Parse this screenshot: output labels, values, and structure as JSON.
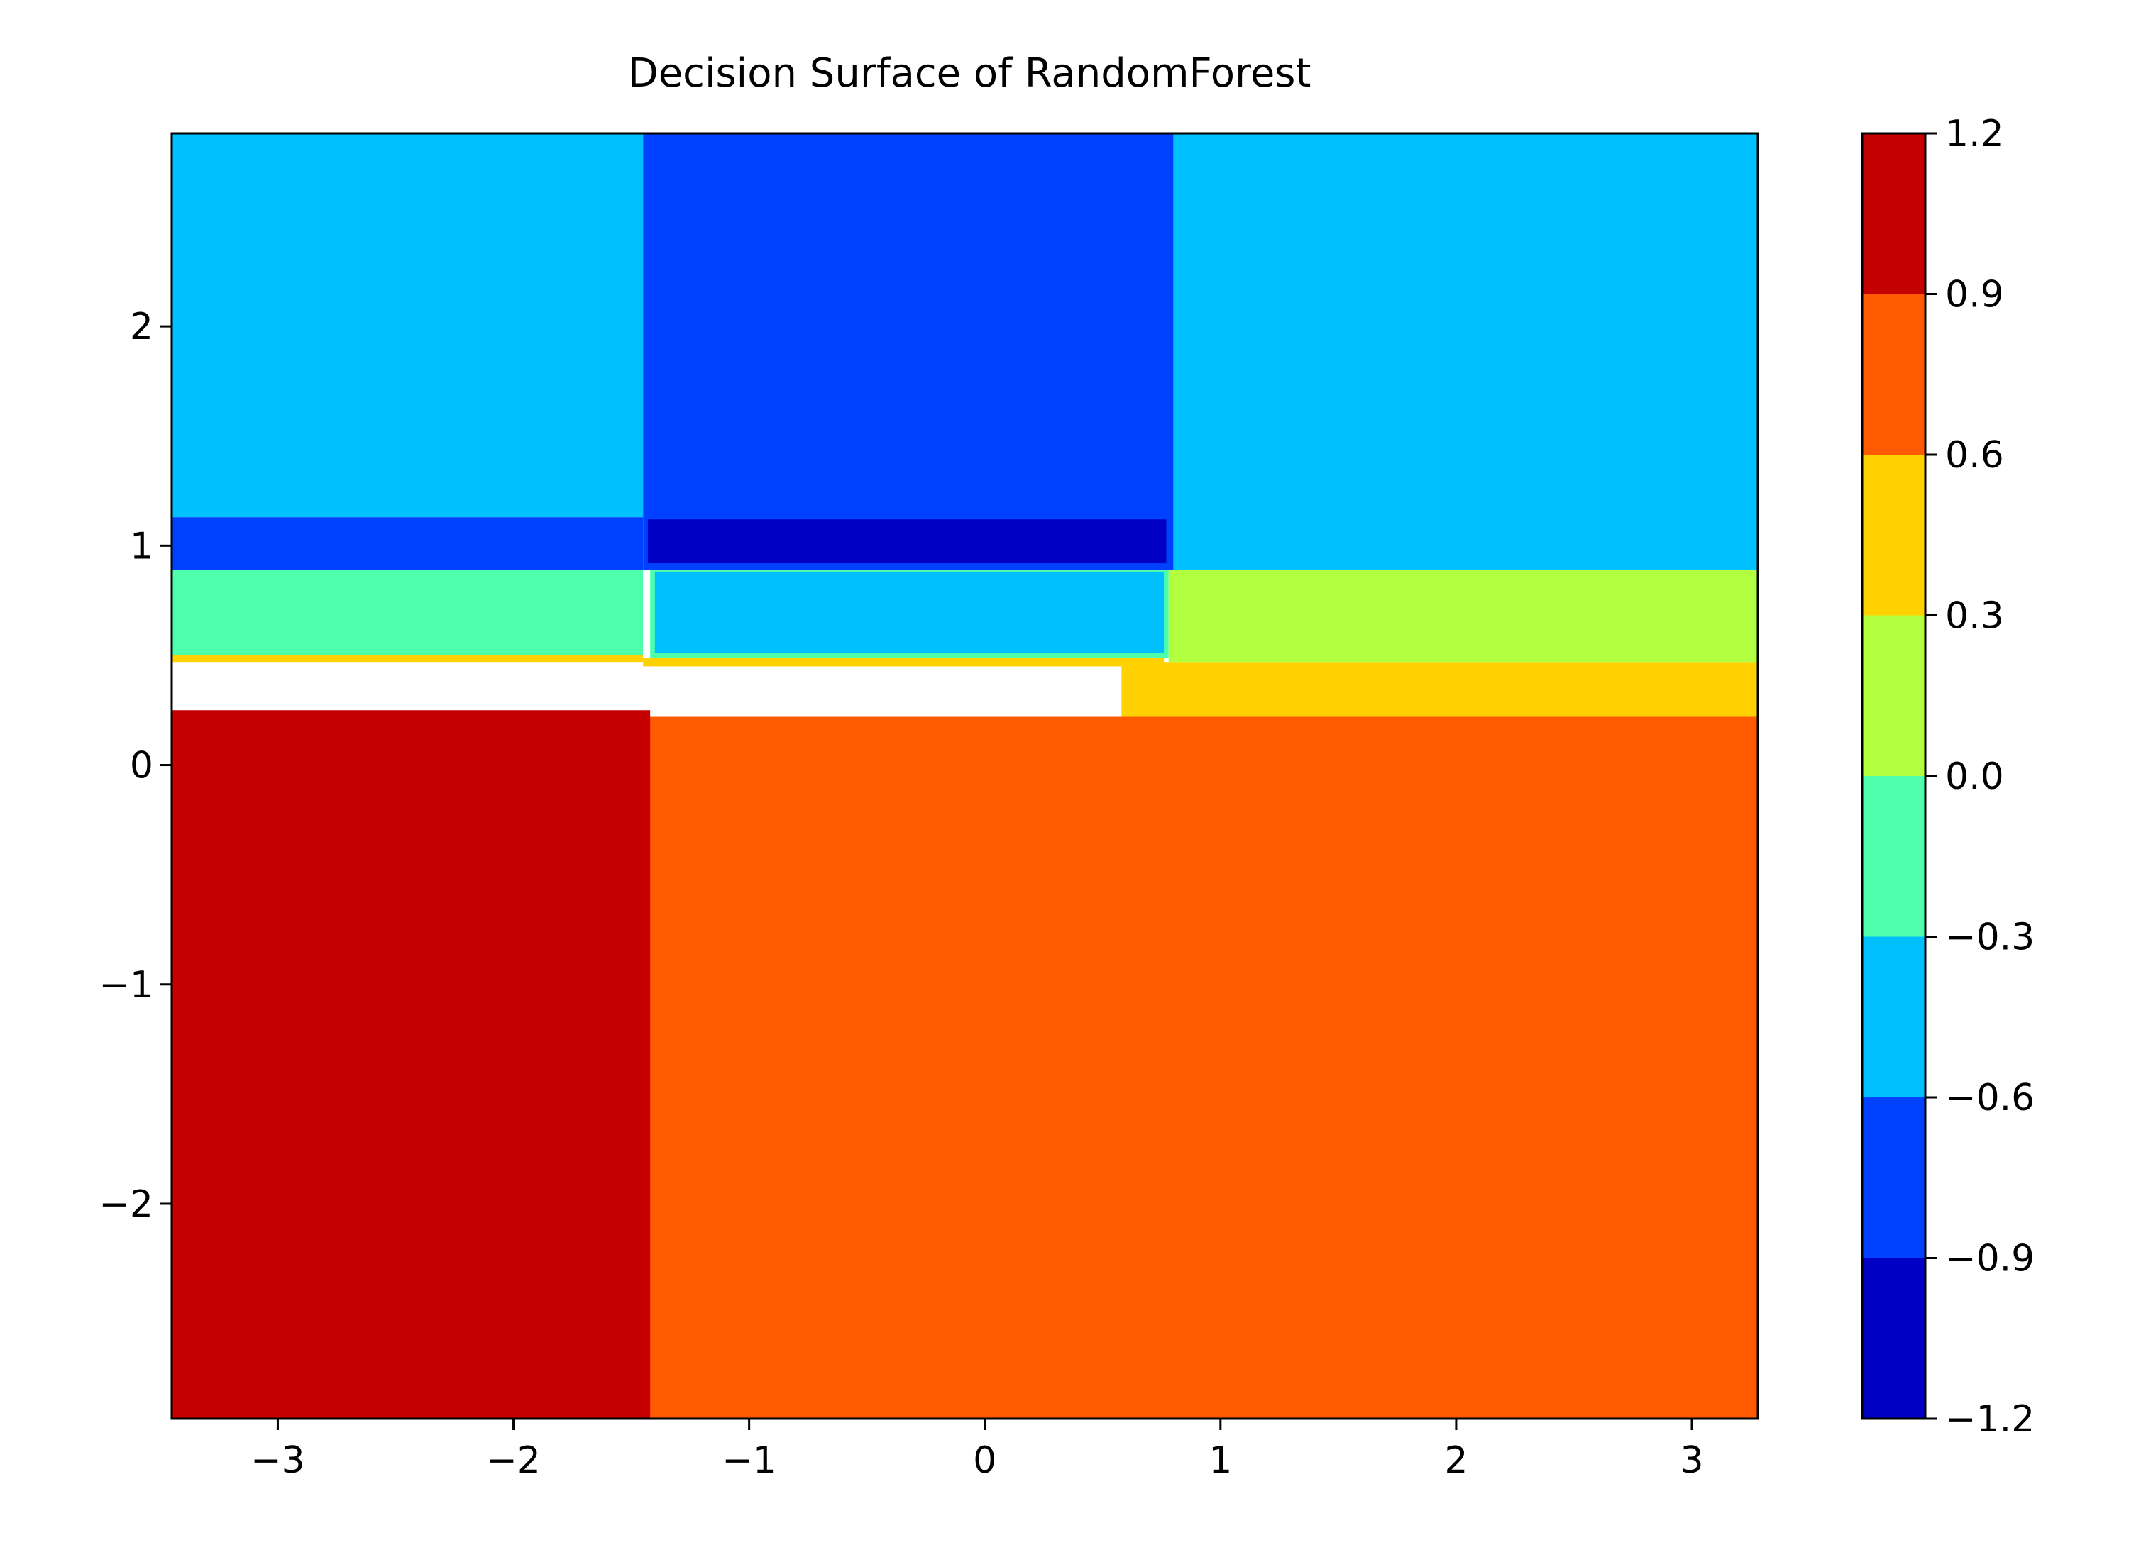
{
  "chart_data": {
    "type": "heatmap",
    "subtype": "filled-contour",
    "title": "Decision Surface of RandomForest",
    "xlabel": "",
    "ylabel": "",
    "xlim": [
      -3.45,
      3.28
    ],
    "ylim": [
      -2.98,
      2.88
    ],
    "x_ticks": [
      -3,
      -2,
      -1,
      0,
      1,
      2,
      3
    ],
    "x_tick_labels": [
      "−3",
      "−2",
      "−1",
      "0",
      "1",
      "2",
      "3"
    ],
    "y_ticks": [
      -2,
      -1,
      0,
      1,
      2
    ],
    "y_tick_labels": [
      "−2",
      "−1",
      "0",
      "1",
      "2"
    ],
    "grid": false,
    "colormap": "jet",
    "colorbar": {
      "levels": [
        -1.2,
        -0.9,
        -0.6,
        -0.3,
        0.0,
        0.3,
        0.6,
        0.9,
        1.2
      ],
      "tick_labels": [
        "−1.2",
        "−0.9",
        "−0.6",
        "−0.3",
        "0.0",
        "0.3",
        "0.6",
        "0.9",
        "1.2"
      ],
      "colors": [
        "#0000c4",
        "#0040ff",
        "#00c0ff",
        "#4dffaa",
        "#b2ff40",
        "#ffd100",
        "#ff5a00",
        "#c40000"
      ]
    },
    "regions": [
      {
        "x": [
          -3.45,
          3.28
        ],
        "y": [
          -2.98,
          0.22
        ],
        "band": 6
      },
      {
        "x": [
          -3.45,
          -1.42
        ],
        "y": [
          -2.98,
          0.25
        ],
        "band": 7
      },
      {
        "x": [
          0.58,
          3.28
        ],
        "y": [
          0.22,
          0.47
        ],
        "band": 5
      },
      {
        "x": [
          -3.45,
          -1.45
        ],
        "y": [
          0.47,
          0.5
        ],
        "band": 5
      },
      {
        "x": [
          -1.45,
          0.76
        ],
        "y": [
          0.45,
          0.49
        ],
        "band": 5
      },
      {
        "x": [
          -3.45,
          -1.45
        ],
        "y": [
          0.5,
          0.89
        ],
        "band": 3
      },
      {
        "x": [
          -1.42,
          0.78
        ],
        "y": [
          0.49,
          0.89
        ],
        "band": 3
      },
      {
        "x": [
          -1.4,
          0.76
        ],
        "y": [
          0.51,
          0.88
        ],
        "band": 2
      },
      {
        "x": [
          0.78,
          3.28
        ],
        "y": [
          0.47,
          0.89
        ],
        "band": 4
      },
      {
        "x": [
          -3.45,
          -1.45
        ],
        "y": [
          0.89,
          1.13
        ],
        "band": 1
      },
      {
        "x": [
          -3.45,
          -1.45
        ],
        "y": [
          1.13,
          2.88
        ],
        "band": 2
      },
      {
        "x": [
          0.8,
          3.28
        ],
        "y": [
          0.89,
          2.88
        ],
        "band": 2
      },
      {
        "x": [
          -1.45,
          0.8
        ],
        "y": [
          0.89,
          2.88
        ],
        "band": 1
      },
      {
        "x": [
          -1.43,
          0.77
        ],
        "y": [
          0.92,
          1.12
        ],
        "band": 0
      }
    ]
  }
}
